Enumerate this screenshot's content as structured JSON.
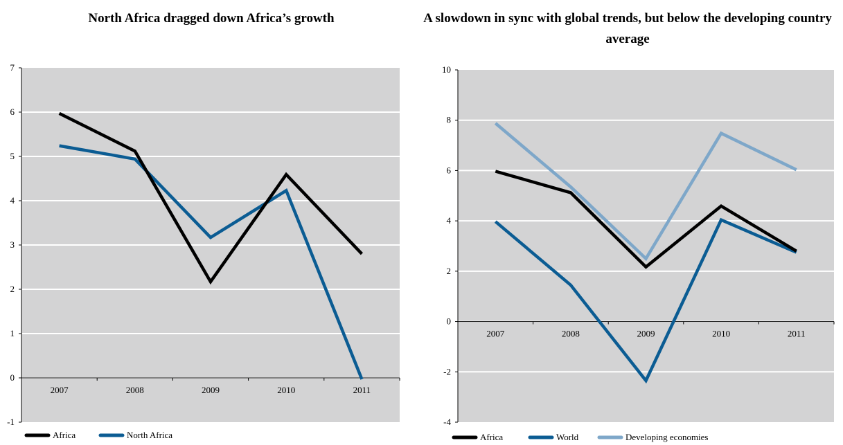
{
  "colors": {
    "plot_bg": "#d3d3d4",
    "gridline": "#ffffff",
    "africa": "#000000",
    "north_africa": "#0b5c93",
    "world": "#0b5c93",
    "developing": "#7ea7c9"
  },
  "chart_data": [
    {
      "type": "line",
      "title": "North Africa dragged down Africa’s growth",
      "xlabel": "",
      "ylabel": "",
      "categories": [
        "2007",
        "2008",
        "2009",
        "2010",
        "2011"
      ],
      "ylim": [
        -1,
        7
      ],
      "yticks": [
        "-1",
        "0",
        "1",
        "2",
        "3",
        "4",
        "5",
        "6",
        "7"
      ],
      "grid": true,
      "legend": "bottom-left",
      "series": [
        {
          "name": "Africa",
          "values": [
            5.97,
            5.12,
            2.17,
            4.59,
            2.8
          ],
          "color": "#000000"
        },
        {
          "name": "North Africa",
          "values": [
            5.24,
            4.94,
            3.17,
            4.23,
            -0.03
          ],
          "color": "#0b5c93"
        }
      ]
    },
    {
      "type": "line",
      "title": "A slowdown in sync with global trends, but below the developing country average",
      "xlabel": "",
      "ylabel": "",
      "categories": [
        "2007",
        "2008",
        "2009",
        "2010",
        "2011"
      ],
      "ylim": [
        -4,
        10
      ],
      "yticks": [
        "-4",
        "-2",
        "0",
        "2",
        "4",
        "6",
        "8",
        "10"
      ],
      "grid": true,
      "legend": "bottom-left",
      "series": [
        {
          "name": "Africa",
          "values": [
            5.97,
            5.12,
            2.17,
            4.59,
            2.8
          ],
          "color": "#000000"
        },
        {
          "name": "World",
          "values": [
            3.97,
            1.45,
            -2.35,
            4.04,
            2.75
          ],
          "color": "#0b5c93"
        },
        {
          "name": "Developing economies",
          "values": [
            7.88,
            5.35,
            2.5,
            7.48,
            6.03
          ],
          "color": "#7ea7c9"
        }
      ]
    }
  ]
}
